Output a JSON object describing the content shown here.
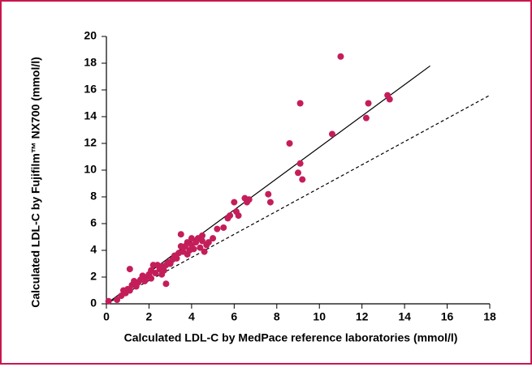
{
  "chart_data": {
    "type": "scatter",
    "xlabel": "Calculated LDL-C by MedPace reference laboratories (mmol/l)",
    "ylabel": "Calculated LDL-C by Fujifilm™ NX700 (mmol/l)",
    "xlim": [
      0,
      18
    ],
    "ylim": [
      0,
      20
    ],
    "xticks": [
      0,
      2,
      4,
      6,
      8,
      10,
      12,
      14,
      16,
      18
    ],
    "yticks": [
      0,
      2,
      4,
      6,
      8,
      10,
      12,
      14,
      16,
      18,
      20
    ],
    "color": "#c41e5a",
    "x": [
      0.1,
      0.5,
      0.7,
      0.8,
      0.9,
      1.0,
      1.1,
      1.1,
      1.2,
      1.3,
      1.4,
      1.5,
      1.6,
      1.7,
      1.8,
      1.9,
      2.0,
      2.1,
      2.1,
      2.2,
      2.3,
      2.4,
      2.5,
      2.6,
      2.6,
      2.7,
      2.8,
      2.8,
      2.9,
      3.0,
      3.1,
      3.2,
      3.3,
      3.4,
      3.5,
      3.5,
      3.6,
      3.7,
      3.8,
      3.8,
      3.9,
      4.0,
      4.0,
      4.1,
      4.2,
      4.3,
      4.4,
      4.5,
      4.5,
      4.6,
      4.7,
      4.8,
      5.0,
      5.2,
      5.5,
      5.7,
      5.8,
      6.0,
      6.1,
      6.2,
      6.5,
      6.6,
      6.7,
      7.6,
      7.7,
      8.6,
      9.0,
      9.1,
      9.1,
      9.2,
      10.6,
      11.0,
      12.2,
      12.3,
      13.2,
      13.3
    ],
    "values": [
      0.2,
      0.3,
      0.6,
      1.0,
      0.8,
      1.1,
      1.0,
      2.6,
      1.4,
      1.7,
      1.3,
      1.6,
      1.8,
      2.1,
      1.7,
      2.0,
      2.2,
      1.9,
      2.5,
      2.9,
      2.3,
      2.9,
      2.6,
      2.2,
      2.8,
      2.5,
      1.5,
      2.9,
      3.1,
      3.0,
      3.3,
      3.6,
      3.4,
      3.8,
      4.3,
      5.2,
      3.9,
      4.3,
      3.7,
      4.6,
      4.0,
      4.4,
      4.9,
      4.1,
      4.6,
      4.9,
      4.2,
      4.7,
      5.1,
      3.9,
      4.4,
      4.6,
      4.9,
      5.6,
      5.7,
      6.4,
      6.6,
      7.6,
      6.9,
      6.6,
      7.9,
      7.6,
      7.8,
      8.2,
      7.6,
      12.0,
      9.8,
      15.0,
      10.5,
      9.3,
      12.7,
      18.5,
      13.9,
      15.0,
      15.6,
      15.3
    ],
    "lines": [
      {
        "style": "solid",
        "x": [
          0,
          15.2
        ],
        "y": [
          0,
          17.8
        ]
      },
      {
        "style": "dashed",
        "x": [
          0,
          18
        ],
        "y": [
          0,
          15.6
        ]
      }
    ]
  }
}
